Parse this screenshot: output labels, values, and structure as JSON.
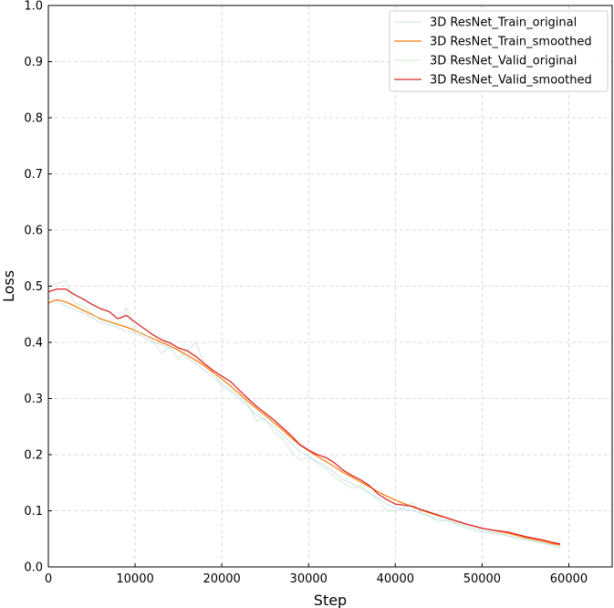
{
  "chart_data": {
    "type": "line",
    "title": "",
    "xlabel": "Step",
    "ylabel": "Loss",
    "xlim": [
      0,
      65000
    ],
    "ylim": [
      0,
      1.0
    ],
    "x_ticks": [
      0,
      10000,
      20000,
      30000,
      40000,
      50000,
      60000
    ],
    "x_tick_labels": [
      "0",
      "10000",
      "20000",
      "30000",
      "40000",
      "50000",
      "60000"
    ],
    "y_ticks": [
      0.0,
      0.1,
      0.2,
      0.3,
      0.4,
      0.5,
      0.6,
      0.7,
      0.8,
      0.9,
      1.0
    ],
    "y_tick_labels": [
      "0.0",
      "0.1",
      "0.2",
      "0.3",
      "0.4",
      "0.5",
      "0.6",
      "0.7",
      "0.8",
      "0.9",
      "1.0"
    ],
    "grid": true,
    "legend_position": "top-right",
    "series": [
      {
        "name": "3D ResNet_Train_original",
        "color": "#a6cee3",
        "opacity": 0.6,
        "width": 1,
        "x": [
          0,
          1000,
          2000,
          3000,
          4000,
          5000,
          6000,
          7000,
          8000,
          9000,
          10000,
          11000,
          12000,
          13000,
          14000,
          15000,
          16000,
          17000,
          18000,
          19000,
          20000,
          21000,
          22000,
          23000,
          24000,
          25000,
          26000,
          27000,
          28000,
          29000,
          30000,
          31000,
          32000,
          33000,
          34000,
          35000,
          36000,
          37000,
          38000,
          39000,
          40000,
          41000,
          42000,
          43000,
          44000,
          45000,
          46000,
          47000,
          48000,
          49000,
          50000,
          51000,
          52000,
          53000,
          54000,
          55000,
          56000,
          57000,
          58000,
          59000
        ],
        "y": [
          0.48,
          0.474,
          0.465,
          0.458,
          0.452,
          0.445,
          0.435,
          0.432,
          0.426,
          0.42,
          0.416,
          0.41,
          0.4,
          0.396,
          0.39,
          0.385,
          0.372,
          0.362,
          0.35,
          0.338,
          0.328,
          0.312,
          0.3,
          0.286,
          0.27,
          0.262,
          0.25,
          0.235,
          0.22,
          0.205,
          0.198,
          0.188,
          0.18,
          0.168,
          0.156,
          0.148,
          0.14,
          0.133,
          0.123,
          0.112,
          0.106,
          0.103,
          0.1,
          0.096,
          0.09,
          0.085,
          0.082,
          0.078,
          0.073,
          0.069,
          0.065,
          0.062,
          0.06,
          0.056,
          0.053,
          0.05,
          0.047,
          0.043,
          0.04,
          0.036
        ]
      },
      {
        "name": "3D ResNet_Train_smoothed",
        "color": "#ff7f0e",
        "opacity": 1,
        "width": 1.3,
        "x": [
          0,
          1000,
          2000,
          3000,
          4000,
          5000,
          6000,
          7000,
          8000,
          9000,
          10000,
          11000,
          12000,
          13000,
          14000,
          15000,
          16000,
          17000,
          18000,
          19000,
          20000,
          21000,
          22000,
          23000,
          24000,
          25000,
          26000,
          27000,
          28000,
          29000,
          30000,
          31000,
          32000,
          33000,
          34000,
          35000,
          36000,
          37000,
          38000,
          39000,
          40000,
          41000,
          42000,
          43000,
          44000,
          45000,
          46000,
          47000,
          48000,
          49000,
          50000,
          51000,
          52000,
          53000,
          54000,
          55000,
          56000,
          57000,
          58000,
          59000
        ],
        "y": [
          0.47,
          0.476,
          0.472,
          0.465,
          0.457,
          0.45,
          0.442,
          0.437,
          0.432,
          0.427,
          0.421,
          0.414,
          0.407,
          0.4,
          0.394,
          0.386,
          0.377,
          0.368,
          0.358,
          0.346,
          0.335,
          0.322,
          0.309,
          0.295,
          0.282,
          0.27,
          0.257,
          0.244,
          0.23,
          0.217,
          0.207,
          0.197,
          0.188,
          0.178,
          0.168,
          0.16,
          0.151,
          0.143,
          0.134,
          0.126,
          0.119,
          0.113,
          0.107,
          0.101,
          0.096,
          0.091,
          0.087,
          0.082,
          0.077,
          0.073,
          0.069,
          0.066,
          0.063,
          0.06,
          0.056,
          0.052,
          0.049,
          0.046,
          0.042,
          0.039
        ]
      },
      {
        "name": "3D ResNet_Valid_original",
        "color": "#b2dfb2",
        "opacity": 0.6,
        "width": 1,
        "x": [
          0,
          1000,
          2000,
          3000,
          4000,
          5000,
          6000,
          7000,
          8000,
          9000,
          10000,
          11000,
          12000,
          13000,
          14000,
          15000,
          16000,
          17000,
          18000,
          19000,
          20000,
          21000,
          22000,
          23000,
          24000,
          25000,
          26000,
          27000,
          28000,
          29000,
          30000,
          31000,
          32000,
          33000,
          34000,
          35000,
          36000,
          37000,
          38000,
          39000,
          40000,
          41000,
          42000,
          43000,
          44000,
          45000,
          46000,
          47000,
          48000,
          49000,
          50000,
          51000,
          52000,
          53000,
          54000,
          55000,
          56000,
          57000,
          58000,
          59000
        ],
        "y": [
          0.5,
          0.505,
          0.51,
          0.47,
          0.465,
          0.452,
          0.44,
          0.436,
          0.43,
          0.462,
          0.42,
          0.415,
          0.405,
          0.38,
          0.392,
          0.37,
          0.385,
          0.4,
          0.36,
          0.35,
          0.32,
          0.315,
          0.305,
          0.29,
          0.26,
          0.265,
          0.24,
          0.228,
          0.205,
          0.19,
          0.195,
          0.185,
          0.175,
          0.16,
          0.15,
          0.14,
          0.145,
          0.13,
          0.12,
          0.1,
          0.1,
          0.105,
          0.115,
          0.095,
          0.09,
          0.08,
          0.085,
          0.075,
          0.07,
          0.065,
          0.062,
          0.06,
          0.058,
          0.055,
          0.05,
          0.048,
          0.045,
          0.042,
          0.037,
          0.033
        ]
      },
      {
        "name": "3D ResNet_Valid_smoothed",
        "color": "#d62728",
        "opacity": 1,
        "width": 1.3,
        "x": [
          0,
          1000,
          2000,
          3000,
          4000,
          5000,
          6000,
          7000,
          8000,
          9000,
          10000,
          11000,
          12000,
          13000,
          14000,
          15000,
          16000,
          17000,
          18000,
          19000,
          20000,
          21000,
          22000,
          23000,
          24000,
          25000,
          26000,
          27000,
          28000,
          29000,
          30000,
          31000,
          32000,
          33000,
          34000,
          35000,
          36000,
          37000,
          38000,
          39000,
          40000,
          41000,
          42000,
          43000,
          44000,
          45000,
          46000,
          47000,
          48000,
          49000,
          50000,
          51000,
          52000,
          53000,
          54000,
          55000,
          56000,
          57000,
          58000,
          59000
        ],
        "y": [
          0.49,
          0.495,
          0.495,
          0.485,
          0.477,
          0.468,
          0.46,
          0.455,
          0.442,
          0.448,
          0.436,
          0.425,
          0.414,
          0.405,
          0.399,
          0.39,
          0.385,
          0.375,
          0.362,
          0.35,
          0.34,
          0.33,
          0.315,
          0.3,
          0.286,
          0.274,
          0.262,
          0.248,
          0.234,
          0.218,
          0.208,
          0.2,
          0.195,
          0.185,
          0.172,
          0.163,
          0.155,
          0.145,
          0.13,
          0.12,
          0.112,
          0.11,
          0.108,
          0.102,
          0.097,
          0.092,
          0.087,
          0.082,
          0.077,
          0.073,
          0.069,
          0.066,
          0.064,
          0.062,
          0.058,
          0.054,
          0.051,
          0.048,
          0.044,
          0.041
        ]
      }
    ]
  }
}
